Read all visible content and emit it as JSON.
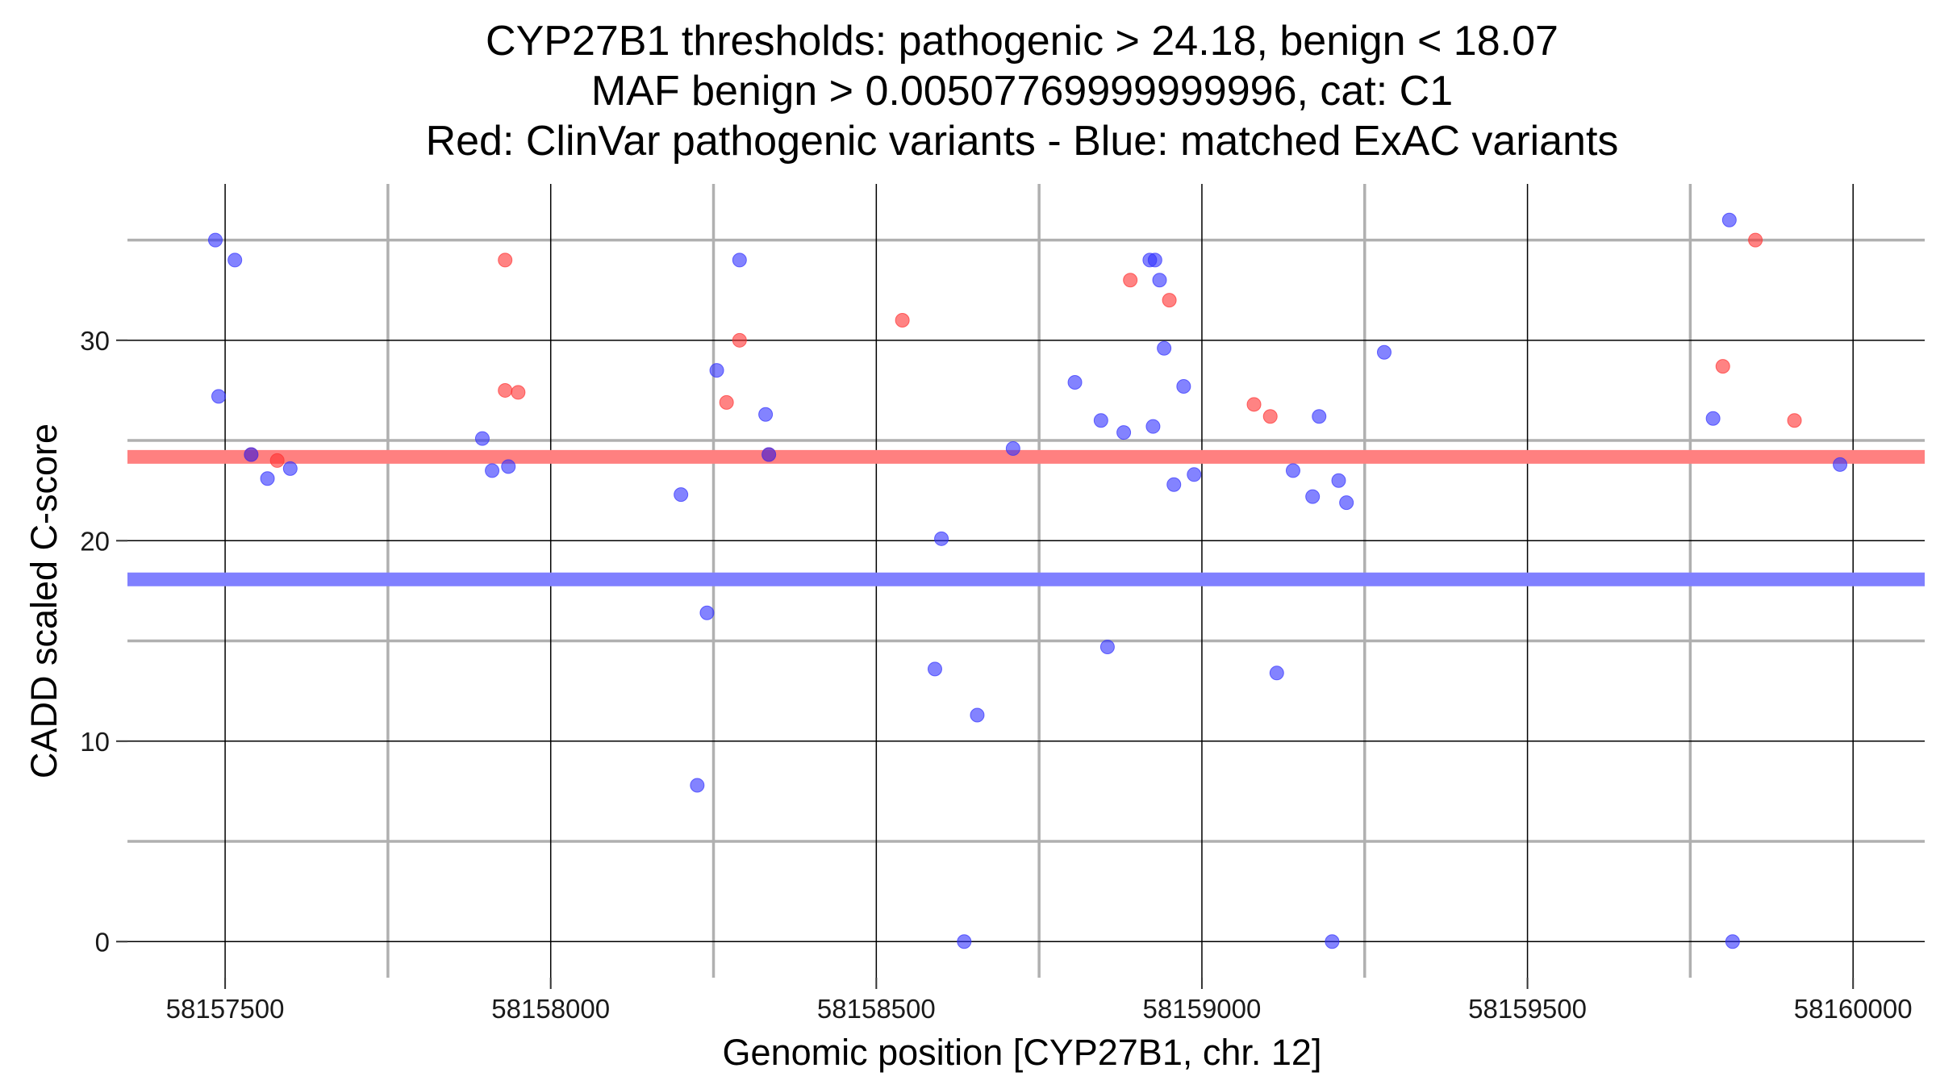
{
  "chart_data": {
    "type": "scatter",
    "title_lines": [
      "CYP27B1 thresholds: pathogenic > 24.18, benign < 18.07",
      "MAF benign > 0.00507769999999996, cat: C1",
      "Red: ClinVar pathogenic variants - Blue: matched ExAC variants"
    ],
    "xlabel": "Genomic position [CYP27B1, chr. 12]",
    "ylabel": "CADD scaled C-score",
    "xlim": [
      58157350,
      58160110
    ],
    "ylim": [
      -1.8,
      37.8
    ],
    "x_ticks": [
      58157500,
      58158000,
      58158500,
      58159000,
      58159500,
      58160000
    ],
    "x_tick_labels": [
      "58157500",
      "58158000",
      "58158500",
      "58159000",
      "58159500",
      "58160000"
    ],
    "y_ticks": [
      0,
      10,
      20,
      30
    ],
    "y_tick_labels": [
      "0",
      "10",
      "20",
      "30"
    ],
    "x_minor_ticks": [
      58157750,
      58158250,
      58158750,
      58159250,
      58159750
    ],
    "y_minor_ticks": [
      5,
      15,
      25,
      35
    ],
    "thresholds": [
      {
        "name": "pathogenic",
        "value": 24.18,
        "color": "#ff8080"
      },
      {
        "name": "benign",
        "value": 18.07,
        "color": "#8080ff"
      }
    ],
    "colors": {
      "pathogenic": "#ff3030",
      "benign": "#3030ff",
      "grid_major": "#000000",
      "grid_minor": "#b0b0b0"
    },
    "series": [
      {
        "name": "ClinVar pathogenic",
        "color": "#ff3030",
        "points": [
          {
            "x": 58157540,
            "y": 24.3
          },
          {
            "x": 58157580,
            "y": 24.0
          },
          {
            "x": 58157930,
            "y": 34.0
          },
          {
            "x": 58157930,
            "y": 27.5
          },
          {
            "x": 58157950,
            "y": 27.4
          },
          {
            "x": 58158270,
            "y": 26.9
          },
          {
            "x": 58158290,
            "y": 30.0
          },
          {
            "x": 58158335,
            "y": 24.3
          },
          {
            "x": 58158540,
            "y": 31.0
          },
          {
            "x": 58158890,
            "y": 33.0
          },
          {
            "x": 58158950,
            "y": 32.0
          },
          {
            "x": 58159080,
            "y": 26.8
          },
          {
            "x": 58159105,
            "y": 26.2
          },
          {
            "x": 58159800,
            "y": 28.7
          },
          {
            "x": 58159850,
            "y": 35.0
          },
          {
            "x": 58159910,
            "y": 26.0
          }
        ]
      },
      {
        "name": "matched ExAC",
        "color": "#3030ff",
        "points": [
          {
            "x": 58157485,
            "y": 35.0
          },
          {
            "x": 58157515,
            "y": 34.0
          },
          {
            "x": 58157490,
            "y": 27.2
          },
          {
            "x": 58157540,
            "y": 24.3
          },
          {
            "x": 58157565,
            "y": 23.1
          },
          {
            "x": 58157600,
            "y": 23.6
          },
          {
            "x": 58157895,
            "y": 25.1
          },
          {
            "x": 58157910,
            "y": 23.5
          },
          {
            "x": 58157935,
            "y": 23.7
          },
          {
            "x": 58158200,
            "y": 22.3
          },
          {
            "x": 58158225,
            "y": 7.8
          },
          {
            "x": 58158240,
            "y": 16.4
          },
          {
            "x": 58158255,
            "y": 28.5
          },
          {
            "x": 58158290,
            "y": 34.0
          },
          {
            "x": 58158330,
            "y": 26.3
          },
          {
            "x": 58158335,
            "y": 24.3
          },
          {
            "x": 58158590,
            "y": 13.6
          },
          {
            "x": 58158600,
            "y": 20.1
          },
          {
            "x": 58158635,
            "y": 0.0
          },
          {
            "x": 58158655,
            "y": 11.3
          },
          {
            "x": 58158710,
            "y": 24.6
          },
          {
            "x": 58158805,
            "y": 27.9
          },
          {
            "x": 58158845,
            "y": 26.0
          },
          {
            "x": 58158855,
            "y": 14.7
          },
          {
            "x": 58158880,
            "y": 25.4
          },
          {
            "x": 58158920,
            "y": 34.0
          },
          {
            "x": 58158928,
            "y": 34.0
          },
          {
            "x": 58158935,
            "y": 33.0
          },
          {
            "x": 58158942,
            "y": 29.6
          },
          {
            "x": 58158925,
            "y": 25.7
          },
          {
            "x": 58158957,
            "y": 22.8
          },
          {
            "x": 58158972,
            "y": 27.7
          },
          {
            "x": 58158988,
            "y": 23.3
          },
          {
            "x": 58159115,
            "y": 13.4
          },
          {
            "x": 58159140,
            "y": 23.5
          },
          {
            "x": 58159170,
            "y": 22.2
          },
          {
            "x": 58159180,
            "y": 26.2
          },
          {
            "x": 58159200,
            "y": 0.0
          },
          {
            "x": 58159210,
            "y": 23.0
          },
          {
            "x": 58159222,
            "y": 21.9
          },
          {
            "x": 58159280,
            "y": 29.4
          },
          {
            "x": 58159785,
            "y": 26.1
          },
          {
            "x": 58159810,
            "y": 36.0
          },
          {
            "x": 58159815,
            "y": 0.0
          },
          {
            "x": 58159980,
            "y": 23.8
          }
        ]
      }
    ]
  }
}
